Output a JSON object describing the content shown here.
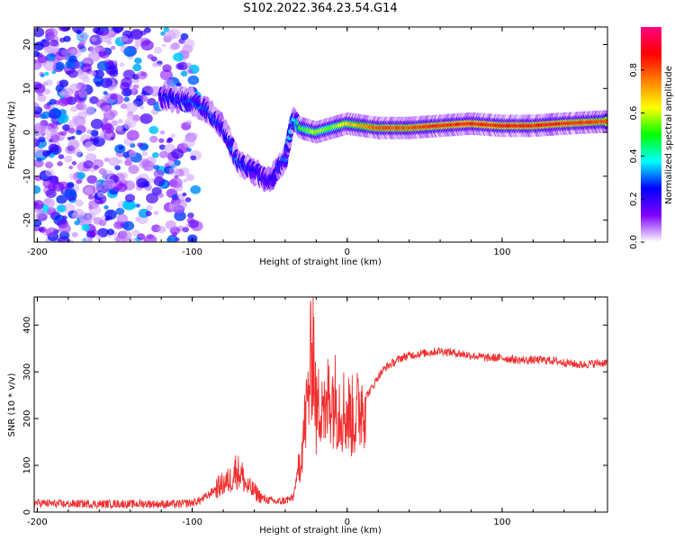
{
  "title": "S102.2022.364.23.54.G14",
  "chart_data": [
    {
      "type": "heatmap",
      "xlabel": "Height of straight line (km)",
      "ylabel": "Frequency (Hz)",
      "xlim": [
        -202,
        168
      ],
      "ylim": [
        -25,
        24
      ],
      "x_ticks": [
        -200,
        -100,
        0,
        100
      ],
      "y_ticks": [
        -20,
        -10,
        0,
        10,
        20
      ],
      "colorbar": {
        "label": "Normalized spectral amplitude",
        "range": [
          0,
          1
        ],
        "ticks": [
          "0.0",
          "0.2",
          "0.4",
          "0.6",
          "0.8"
        ],
        "tick_values": [
          0,
          0.2,
          0.4,
          0.6,
          0.8
        ],
        "colors": [
          "#ffffff",
          "#8000ff",
          "#0000ff",
          "#00ffff",
          "#00ff00",
          "#ffff00",
          "#ff8000",
          "#ff0000",
          "#ff0080"
        ]
      },
      "ridge": {
        "x": [
          -120,
          -100,
          -90,
          -80,
          -70,
          -60,
          -50,
          -40,
          -35,
          -30,
          -20,
          -10,
          0,
          20,
          40,
          60,
          80,
          100,
          120,
          140,
          168
        ],
        "y": [
          8,
          7,
          5,
          1,
          -7,
          -9,
          -11,
          -6,
          3,
          1,
          0,
          1,
          2,
          1,
          1,
          1.5,
          2,
          1.5,
          1.5,
          2,
          2.5
        ],
        "amplitude": [
          0.25,
          0.3,
          0.3,
          0.25,
          0.3,
          0.25,
          0.2,
          0.3,
          0.35,
          0.5,
          0.6,
          0.55,
          0.65,
          0.8,
          0.8,
          0.85,
          0.85,
          0.85,
          0.85,
          0.85,
          0.8
        ]
      }
    },
    {
      "type": "line",
      "xlabel": "Height of straight line (km)",
      "ylabel": "SNR (10 * v/v)",
      "xlim": [
        -202,
        168
      ],
      "ylim": [
        0,
        460
      ],
      "x_ticks": [
        -200,
        -100,
        0,
        100
      ],
      "y_ticks": [
        0,
        100,
        200,
        300,
        400
      ],
      "color": "#f03030",
      "x": [
        -202,
        -190,
        -180,
        -170,
        -160,
        -150,
        -140,
        -130,
        -120,
        -110,
        -100,
        -95,
        -90,
        -85,
        -80,
        -75,
        -72,
        -68,
        -65,
        -60,
        -55,
        -50,
        -45,
        -40,
        -35,
        -30,
        -28,
        -25,
        -22,
        -20,
        -18,
        -16,
        -14,
        -12,
        -10,
        -5,
        0,
        5,
        10,
        15,
        20,
        25,
        30,
        35,
        40,
        50,
        60,
        70,
        80,
        90,
        100,
        110,
        120,
        130,
        140,
        150,
        160,
        168
      ],
      "y": [
        20,
        18,
        17,
        18,
        17,
        18,
        17,
        18,
        17,
        17,
        20,
        25,
        35,
        50,
        60,
        70,
        90,
        80,
        55,
        45,
        30,
        25,
        22,
        25,
        30,
        120,
        170,
        250,
        380,
        200,
        230,
        270,
        180,
        260,
        250,
        230,
        210,
        200,
        240,
        260,
        290,
        310,
        320,
        330,
        335,
        340,
        345,
        340,
        335,
        330,
        330,
        325,
        325,
        325,
        320,
        315,
        318,
        320
      ]
    }
  ]
}
